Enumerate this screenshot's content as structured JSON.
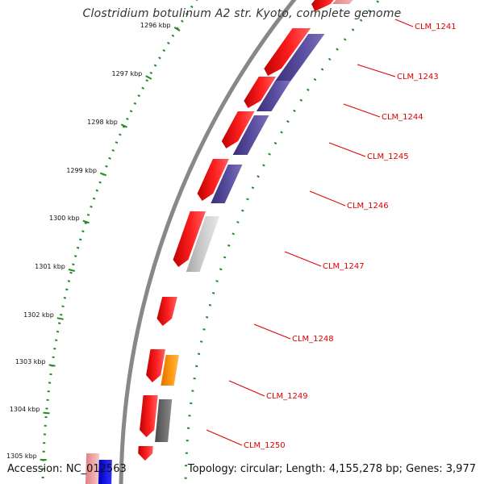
{
  "title": "Clostridium botulinum A2 str. Kyoto, complete genome",
  "footer": {
    "accession": "Accession: NC_012563",
    "summary": "Topology: circular; Length: 4,155,278 bp; Genes: 3,977"
  },
  "colors": {
    "backbone": "#888888",
    "ruler_dots": "#228b22",
    "strand_dots": "#228b22",
    "label_text": "#dd0000",
    "gene_red": "#ff0000",
    "gene_purple": "#4b3f8f",
    "gene_light_gray": "#c8c8c8",
    "gene_dark_gray": "#666666",
    "gene_orange": "#ff9900",
    "gene_pink": "#f0a0a0",
    "gene_blue": "#0000ff"
  },
  "ticks": [
    "1296 kbp",
    "1297 kbp",
    "1298 kbp",
    "1299 kbp",
    "1300 kbp",
    "1301 kbp",
    "1302 kbp",
    "1303 kbp",
    "1304 kbp",
    "1305 kbp"
  ],
  "gene_labels": [
    "CLM_1241",
    "CLM_1243",
    "CLM_1244",
    "CLM_1245",
    "CLM_1246",
    "CLM_1247",
    "CLM_1248",
    "CLM_1249",
    "CLM_1250"
  ]
}
